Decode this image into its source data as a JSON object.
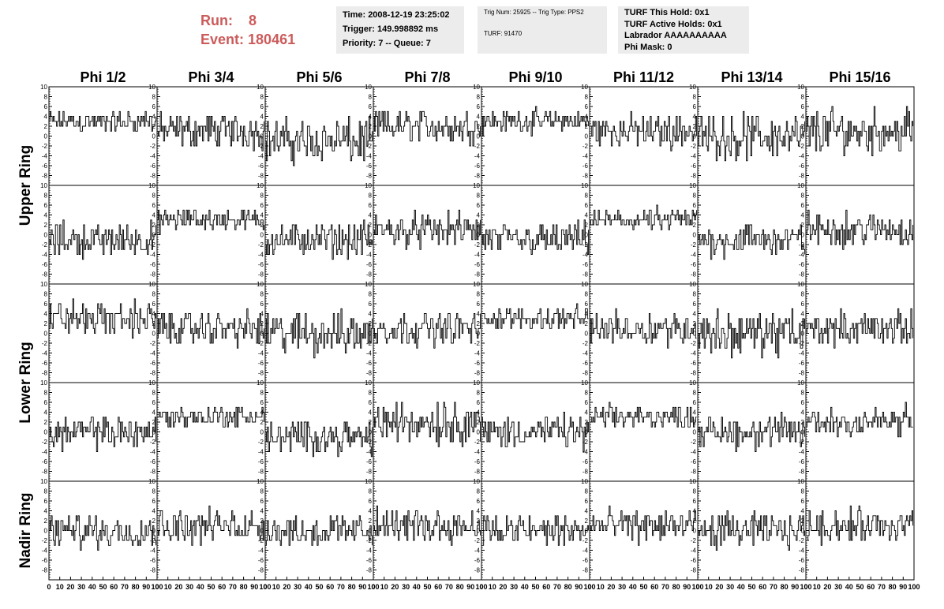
{
  "header": {
    "run_label": "Run:",
    "run_value": "8",
    "event_label": "Event:",
    "event_value": "180461",
    "time": "Time: 2008-12-19 23:25:02",
    "trigger": "Trigger: 149.998892 ms",
    "priority": "Priority: 7 -- Queue: 7",
    "trig_num": "Trig Num: 25925 -- Trig Type: PPS2",
    "turf": "TURF: 91470",
    "turf_hold": "TURF This Hold: 0x1",
    "turf_active": "TURF Active Holds: 0x1",
    "labrador": "Labrador AAAAAAAAAA",
    "phi_mask": "Phi Mask: 0"
  },
  "colors": {
    "header_red": "#cc5b5b",
    "panel_bg": "#ececec",
    "trace": "#000000"
  },
  "chart_data": {
    "type": "line",
    "title": "",
    "columns": [
      "Phi 1/2",
      "Phi 3/4",
      "Phi 5/6",
      "Phi 7/8",
      "Phi 9/10",
      "Phi 11/12",
      "Phi 13/14",
      "Phi 15/16"
    ],
    "rows": [
      "Upper Ring",
      "Upper Ring",
      "Lower Ring",
      "Lower Ring",
      "Nadir Ring"
    ],
    "row_labels": [
      "Upper Ring",
      "Lower Ring",
      "Nadir Ring"
    ],
    "xlim": [
      0,
      100
    ],
    "ylim": [
      -10,
      10
    ],
    "x_ticks": [
      0,
      10,
      20,
      30,
      40,
      50,
      60,
      70,
      80,
      90,
      100
    ],
    "y_ticks": [
      -8,
      -6,
      -4,
      -2,
      0,
      2,
      4,
      6,
      8,
      10
    ],
    "n_samples": 100,
    "panel_means": [
      [
        3,
        1,
        -1,
        2,
        3,
        1,
        0,
        1
      ],
      [
        -1,
        3,
        -1,
        1,
        -1,
        3,
        -1,
        1
      ],
      [
        3,
        1,
        0,
        1,
        3,
        1,
        0,
        1
      ],
      [
        0,
        3,
        -1,
        2,
        0,
        3,
        0,
        2
      ],
      [
        0,
        1,
        0,
        1,
        0,
        1,
        0,
        1
      ]
    ],
    "panel_spreads": [
      [
        2,
        3,
        4,
        3,
        2,
        3,
        4,
        4
      ],
      [
        3,
        2,
        3,
        3,
        3,
        2,
        3,
        3
      ],
      [
        3,
        3,
        4,
        3,
        2,
        3,
        4,
        3
      ],
      [
        3,
        2,
        3,
        4,
        3,
        2,
        3,
        3
      ],
      [
        3,
        3,
        3,
        3,
        3,
        3,
        3,
        3
      ]
    ]
  }
}
